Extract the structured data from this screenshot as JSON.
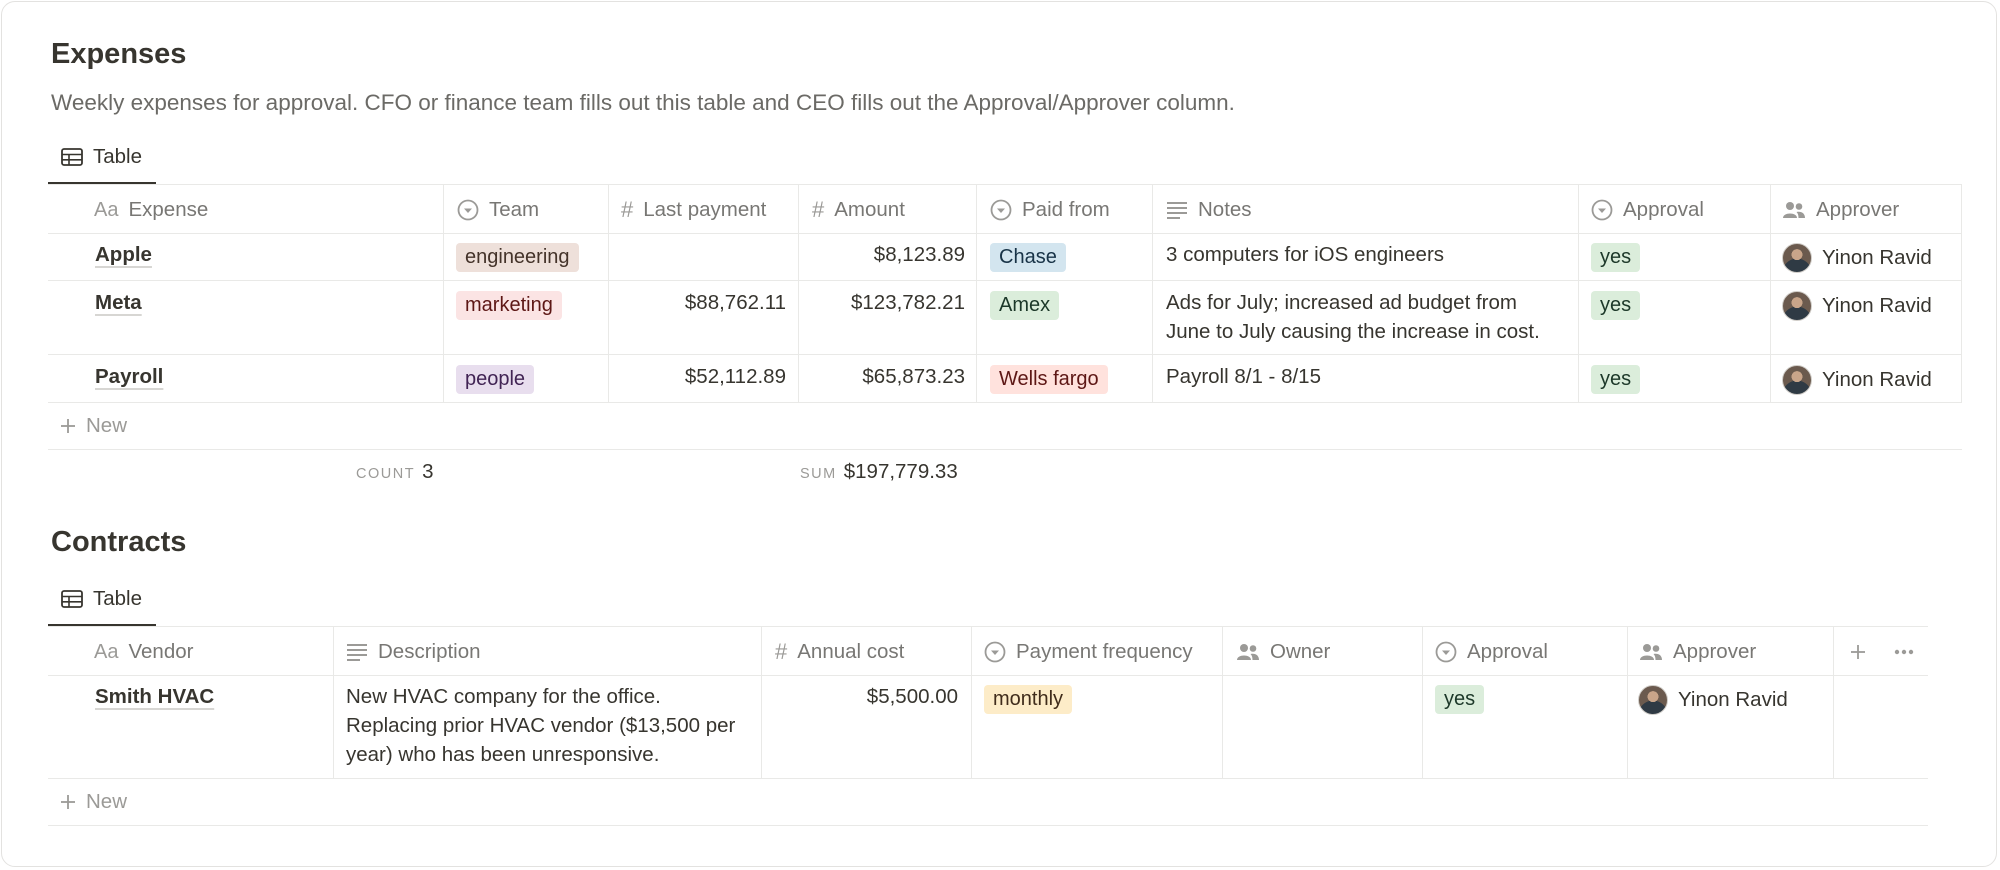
{
  "expenses": {
    "title": "Expenses",
    "description": "Weekly expenses for approval. CFO or finance team fills out this table and CEO fills out the Approval/Approver column.",
    "tab_label": "Table",
    "columns": [
      {
        "icon": "title-icon",
        "icon_text": "Aa",
        "label": "Expense"
      },
      {
        "icon": "select-icon",
        "label": "Team"
      },
      {
        "icon": "number-icon",
        "label": "Last payment"
      },
      {
        "icon": "number-icon",
        "label": "Amount"
      },
      {
        "icon": "select-icon",
        "label": "Paid from"
      },
      {
        "icon": "text-icon",
        "label": "Notes"
      },
      {
        "icon": "select-icon",
        "label": "Approval"
      },
      {
        "icon": "person-icon",
        "label": "Approver"
      }
    ],
    "rows": [
      {
        "expense": "Apple",
        "team": "engineering",
        "last_payment": "",
        "amount": "$8,123.89",
        "paid_from": "Chase",
        "notes": "3 computers for iOS engineers",
        "approval": "yes",
        "approver": "Yinon Ravid"
      },
      {
        "expense": "Meta",
        "team": "marketing",
        "last_payment": "$88,762.11",
        "amount": "$123,782.21",
        "paid_from": "Amex",
        "notes": "Ads for July; increased ad budget from June to July causing the increase in cost.",
        "approval": "yes",
        "approver": "Yinon Ravid"
      },
      {
        "expense": "Payroll",
        "team": "people",
        "last_payment": "$52,112.89",
        "amount": "$65,873.23",
        "paid_from": "Wells fargo",
        "notes": "Payroll 8/1 - 8/15",
        "approval": "yes",
        "approver": "Yinon Ravid"
      }
    ],
    "new_label": "New",
    "count_label": "COUNT",
    "count_value": "3",
    "sum_label": "SUM",
    "sum_value": "$197,779.33"
  },
  "contracts": {
    "title": "Contracts",
    "tab_label": "Table",
    "columns": [
      {
        "icon": "title-icon",
        "icon_text": "Aa",
        "label": "Vendor"
      },
      {
        "icon": "text-icon",
        "label": "Description"
      },
      {
        "icon": "number-icon",
        "label": "Annual cost"
      },
      {
        "icon": "select-icon",
        "label": "Payment frequency"
      },
      {
        "icon": "person-icon",
        "label": "Owner"
      },
      {
        "icon": "select-icon",
        "label": "Approval"
      },
      {
        "icon": "person-icon",
        "label": "Approver"
      }
    ],
    "rows": [
      {
        "vendor": "Smith HVAC",
        "description": "New HVAC company for the office. Replacing prior HVAC vendor ($13,500 per year) who has been unresponsive.",
        "annual_cost": "$5,500.00",
        "payment_frequency": "monthly",
        "owner": "",
        "approval": "yes",
        "approver": "Yinon Ravid"
      }
    ],
    "new_label": "New"
  },
  "colors": {
    "tag_engineering": "#eee0da",
    "tag_marketing": "#fbe4e4",
    "tag_people": "#e8deee",
    "tag_chase": "#d3e5ef",
    "tag_amex": "#dbeddb",
    "tag_wells_fargo": "#ffe2dd",
    "tag_yes": "#dbeddb",
    "tag_monthly": "#fdecc8"
  }
}
